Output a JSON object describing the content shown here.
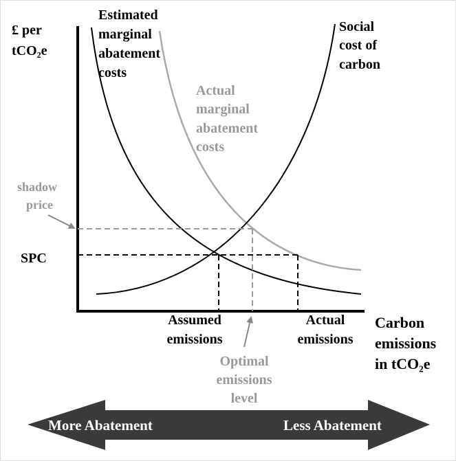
{
  "labels": {
    "y_axis": [
      "£ per",
      "tCO₂e"
    ],
    "estimated_mac": [
      "Estimated",
      "marginal",
      "abatement",
      "costs"
    ],
    "social_cost": [
      "Social",
      "cost of",
      "carbon"
    ],
    "actual_mac": [
      "Actual",
      "marginal",
      "abatement",
      "costs"
    ],
    "shadow_price": [
      "shadow",
      "price"
    ],
    "spc": "SPC",
    "assumed_emissions": [
      "Assumed",
      "emissions"
    ],
    "actual_emissions": [
      "Actual",
      "emissions"
    ],
    "optimal_emissions": [
      "Optimal",
      "emissions",
      "level"
    ],
    "x_axis": [
      "Carbon",
      "emissions",
      "in tCO₂e"
    ],
    "more_abatement": "More Abatement",
    "less_abatement": "Less Abatement"
  }
}
